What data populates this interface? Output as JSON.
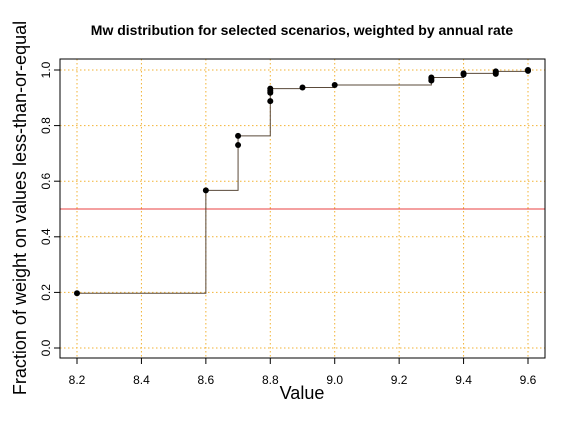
{
  "chart_data": {
    "type": "scatter",
    "title": "Mw distribution for selected scenarios, weighted by annual rate",
    "xlabel": "Value",
    "ylabel": "Fraction of weight on values less-than-or-equal",
    "xlim": [
      8.2,
      9.6
    ],
    "ylim": [
      0.0,
      1.0
    ],
    "x_ticks": [
      8.2,
      8.4,
      8.6,
      8.8,
      9.0,
      9.2,
      9.4,
      9.6
    ],
    "y_ticks": [
      0.0,
      0.2,
      0.4,
      0.6,
      0.8,
      1.0
    ],
    "x_tick_labels": [
      "8.2",
      "8.4",
      "8.6",
      "8.8",
      "9.0",
      "9.2",
      "9.4",
      "9.6"
    ],
    "y_tick_labels": [
      "0.0",
      "0.2",
      "0.4",
      "0.6",
      "0.8",
      "1.0"
    ],
    "grid": true,
    "grid_color": "#f2b233",
    "step_color": "#5a4a3a",
    "point_color": "#000000",
    "reference_line": {
      "y": 0.5,
      "color": "#e84040"
    },
    "points": [
      {
        "x": 8.2,
        "y": 0.197
      },
      {
        "x": 8.6,
        "y": 0.567
      },
      {
        "x": 8.7,
        "y": 0.73
      },
      {
        "x": 8.7,
        "y": 0.763
      },
      {
        "x": 8.8,
        "y": 0.888
      },
      {
        "x": 8.8,
        "y": 0.918
      },
      {
        "x": 8.8,
        "y": 0.925
      },
      {
        "x": 8.8,
        "y": 0.933
      },
      {
        "x": 8.9,
        "y": 0.937
      },
      {
        "x": 9.0,
        "y": 0.946
      },
      {
        "x": 9.3,
        "y": 0.962
      },
      {
        "x": 9.3,
        "y": 0.968
      },
      {
        "x": 9.3,
        "y": 0.973
      },
      {
        "x": 9.4,
        "y": 0.984
      },
      {
        "x": 9.4,
        "y": 0.988
      },
      {
        "x": 9.5,
        "y": 0.986
      },
      {
        "x": 9.5,
        "y": 0.991
      },
      {
        "x": 9.5,
        "y": 0.995
      },
      {
        "x": 9.6,
        "y": 0.997
      },
      {
        "x": 9.6,
        "y": 1.0
      }
    ]
  }
}
